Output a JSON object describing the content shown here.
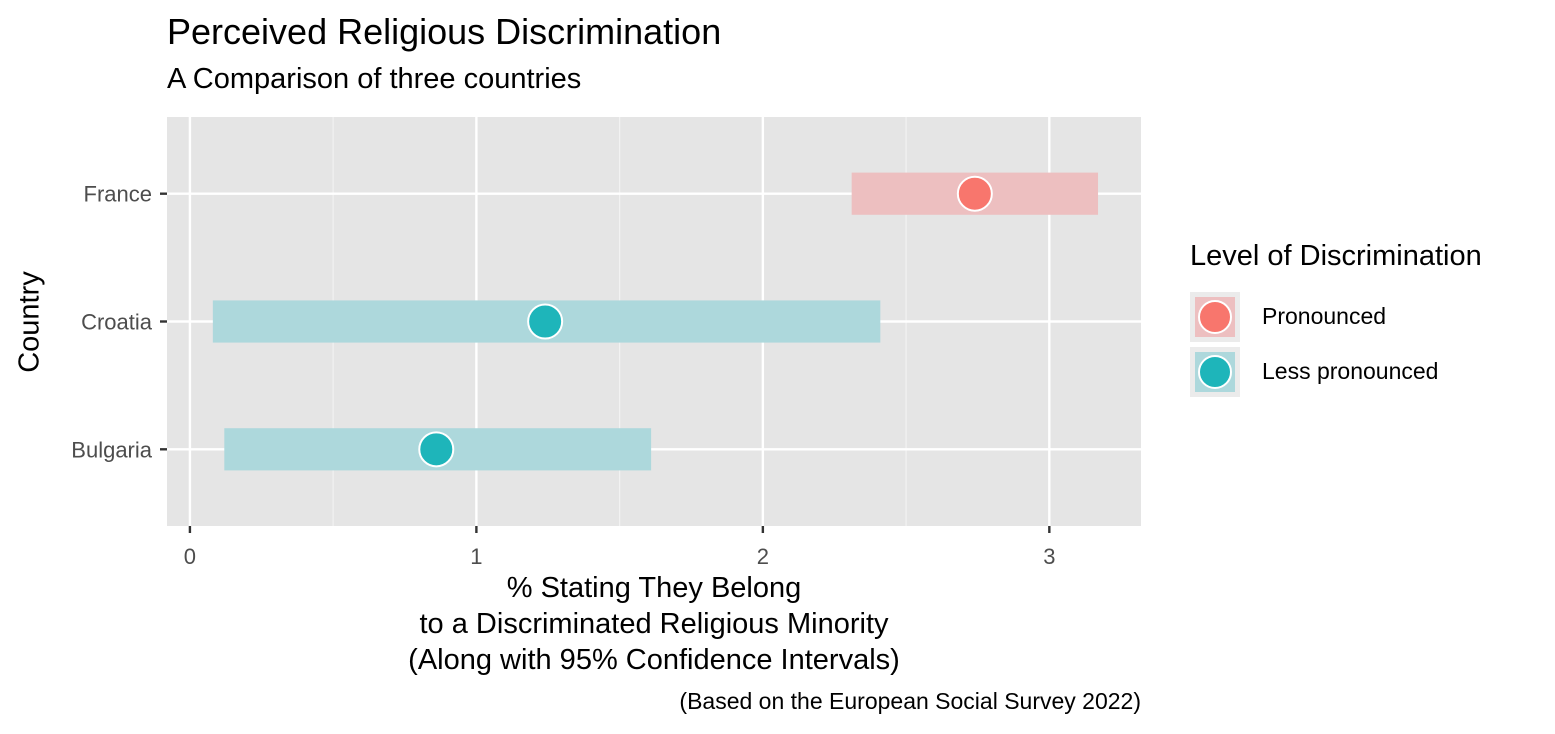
{
  "chart_data": {
    "type": "scatter",
    "title": "Perceived Religious Discrimination",
    "subtitle": "A Comparison of three countries",
    "xlabel_lines": [
      "% Stating They Belong",
      "to a Discriminated Religious Minority",
      "(Along with 95% Confidence Intervals)"
    ],
    "ylabel": "Country",
    "caption": "(Based on the European Social Survey 2022)",
    "xlim": [
      -0.08,
      3.32
    ],
    "x_ticks": [
      0,
      1,
      2,
      3
    ],
    "categories": [
      "Bulgaria",
      "Croatia",
      "France"
    ],
    "points": [
      {
        "country": "France",
        "estimate": 2.74,
        "ci_low": 2.31,
        "ci_high": 3.17,
        "level": "Pronounced"
      },
      {
        "country": "Croatia",
        "estimate": 1.24,
        "ci_low": 0.08,
        "ci_high": 2.41,
        "level": "Less pronounced"
      },
      {
        "country": "Bulgaria",
        "estimate": 0.86,
        "ci_low": 0.12,
        "ci_high": 1.61,
        "level": "Less pronounced"
      }
    ],
    "grid": true,
    "legend": {
      "title": "Level of Discrimination",
      "placement": "right",
      "items": [
        {
          "label": "Pronounced",
          "color": "#F8766D",
          "band_color": "#EDBFC0"
        },
        {
          "label": "Less pronounced",
          "color": "#1EB5BA",
          "band_color": "#ADD8DC"
        }
      ]
    }
  }
}
